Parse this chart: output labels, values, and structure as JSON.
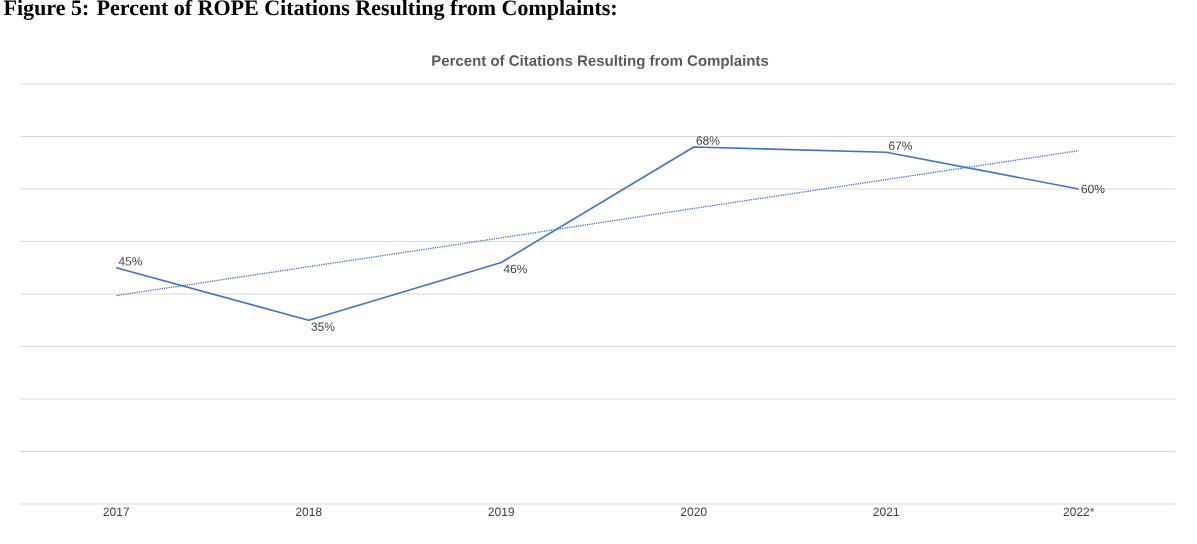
{
  "chart_data": {
    "type": "line",
    "title": "Figure 5: Percent of ROPE Citations Resulting from Complaints:",
    "subtitle": "Percent of Citations Resulting from Complaints",
    "categories": [
      "2017",
      "2018",
      "2019",
      "2020",
      "2021",
      "2022*"
    ],
    "series": [
      {
        "color": "#4472c4",
        "values": [
          45,
          35,
          46,
          68,
          67,
          60
        ],
        "value_labels": [
          "45%",
          "35%",
          "46%",
          "68%",
          "67%",
          "60%"
        ],
        "line_style": "solid"
      },
      {
        "color": "#4472c4",
        "values": [
          39.7,
          45.2,
          50.7,
          56.3,
          61.8,
          67.3
        ],
        "line_style": "dotted"
      }
    ],
    "ylim": [
      0,
      80
    ],
    "yticks": [
      {
        "value": 0,
        "label": null
      },
      {
        "value": 10,
        "label": null
      },
      {
        "value": 20,
        "label": null
      },
      {
        "value": 30,
        "label": null
      },
      {
        "value": 40,
        "label": null
      },
      {
        "value": 50,
        "label": null
      },
      {
        "value": 60,
        "label": null
      },
      {
        "value": 70,
        "label": null
      },
      {
        "value": 80,
        "label": null
      }
    ],
    "grid": "y",
    "tick_labels": "x",
    "marker": "none"
  }
}
